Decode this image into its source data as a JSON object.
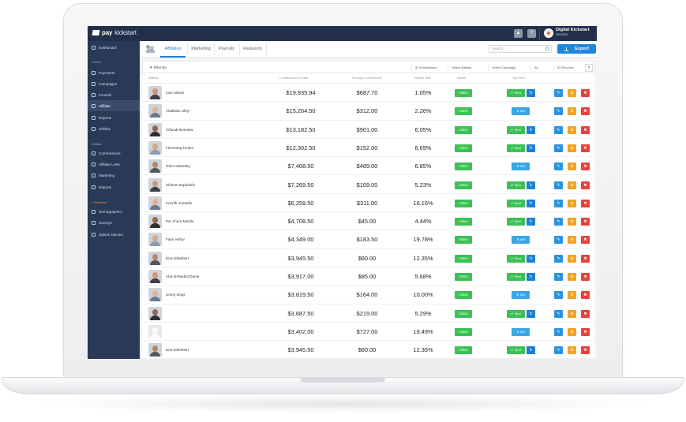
{
  "app": {
    "logo_bold": "pay",
    "logo_thin": "kickstart",
    "user": {
      "name": "Digital Kickstart",
      "role": "Vendor"
    }
  },
  "sidebar": {
    "items": [
      {
        "label": "Dashboard",
        "active": false
      },
      {
        "label": "Payments"
      },
      {
        "label": "Campaigns"
      },
      {
        "label": "Funnels"
      },
      {
        "label": "Affiliate",
        "active": true
      },
      {
        "label": "Reports"
      },
      {
        "label": "Utilities"
      },
      {
        "label": "Commissions"
      },
      {
        "label": "Affiliate Links"
      },
      {
        "label": "Marketing"
      },
      {
        "label": "Reports"
      },
      {
        "label": "Demographics"
      },
      {
        "label": "Surveys"
      },
      {
        "label": "Uptime Monitor"
      }
    ],
    "headings": [
      "Vendor",
      "Affiliate",
      "+ Premium"
    ]
  },
  "tabs": [
    {
      "label": "Affiliates",
      "active": true
    },
    {
      "label": "Marketing"
    },
    {
      "label": "Payouts"
    },
    {
      "label": "Requests"
    }
  ],
  "search": {
    "placeholder": "Search..."
  },
  "export_label": "Export",
  "filter": {
    "label": "Filter By",
    "commissions": "$ Commissions",
    "affiliate": "Select Affiliate",
    "campaign": "Select Campaign",
    "all": "All",
    "records": "50 Records",
    "close": "×"
  },
  "columns": {
    "affiliate": "Affiliate",
    "commissions_to_date": "Commissions to Date",
    "pending_commissions": "Pending Commissions",
    "refund_rate": "Refund Rate",
    "status": "Status",
    "tax_form": "Tax Form"
  },
  "labels": {
    "active": "Active",
    "sent": "✔ Sent",
    "w8": "⬇ W8",
    "refresh": "↻",
    "edit": "✎",
    "ban": "⊘",
    "delete": "✖"
  },
  "rows": [
    {
      "name": "Ioan Nikola",
      "c2d": "$19,935.94",
      "pending": "$687.70",
      "refund": "1.05%",
      "tax": "sent",
      "avatar": "photo"
    },
    {
      "name": "Vladislav Uthyr",
      "c2d": "$15,264.50",
      "pending": "$312.00",
      "refund": "2.26%",
      "tax": "w8",
      "avatar": "photo"
    },
    {
      "name": "Võlundr Boreslav",
      "c2d": "$13,182.50",
      "pending": "$901.00",
      "refund": "6.05%",
      "tax": "sent",
      "avatar": "photo"
    },
    {
      "name": "Flemming Teodor",
      "c2d": "$12,302.50",
      "pending": "$152.00",
      "refund": "8.69%",
      "tax": "sent",
      "avatar": "photo"
    },
    {
      "name": "Torin Hoberaky",
      "c2d": "$7,408.50",
      "pending": "$489.00",
      "refund": "6.85%",
      "tax": "w8",
      "avatar": "photo"
    },
    {
      "name": "Shimon Espiridión",
      "c2d": "$7,269.50",
      "pending": "$109.00",
      "refund": "5.23%",
      "tax": "sent",
      "avatar": "photo"
    },
    {
      "name": "Arnvíðr Joosefin",
      "c2d": "$6,259.50",
      "pending": "$311.00",
      "refund": "16.16%",
      "tax": "sent",
      "avatar": "photo"
    },
    {
      "name": "Per Ahura Mazda",
      "c2d": "$4,708.50",
      "pending": "$45.00",
      "refund": "4.44%",
      "tax": "sent",
      "avatar": "photo"
    },
    {
      "name": "Fahri Arthur",
      "c2d": "$4,349.00",
      "pending": "$183.50",
      "refund": "19.78%",
      "tax": "w8",
      "avatar": "photo"
    },
    {
      "name": "Eron Ekkebert",
      "c2d": "$3,945.50",
      "pending": "$60.00",
      "refund": "12.35%",
      "tax": "sent",
      "avatar": "photo"
    },
    {
      "name": "Abd al-Rashid Dante",
      "c2d": "$3,917.00",
      "pending": "$85.00",
      "refund": "5.68%",
      "tax": "sent",
      "avatar": "photo"
    },
    {
      "name": "Jenny Grigs",
      "c2d": "$3,819.50",
      "pending": "$164.00",
      "refund": "10.00%",
      "tax": "w8",
      "avatar": "photo"
    },
    {
      "name": "",
      "c2d": "$3,687.50",
      "pending": "$219.00",
      "refund": "5.29%",
      "tax": "sent",
      "avatar": "photo"
    },
    {
      "name": "",
      "c2d": "$3,402.00",
      "pending": "$727.00",
      "refund": "19.49%",
      "tax": "w8",
      "avatar": "placeholder"
    },
    {
      "name": "Eron Ekkebert",
      "c2d": "$3,945.50",
      "pending": "$60.00",
      "refund": "12.35%",
      "tax": "sent",
      "avatar": "photo"
    }
  ]
}
